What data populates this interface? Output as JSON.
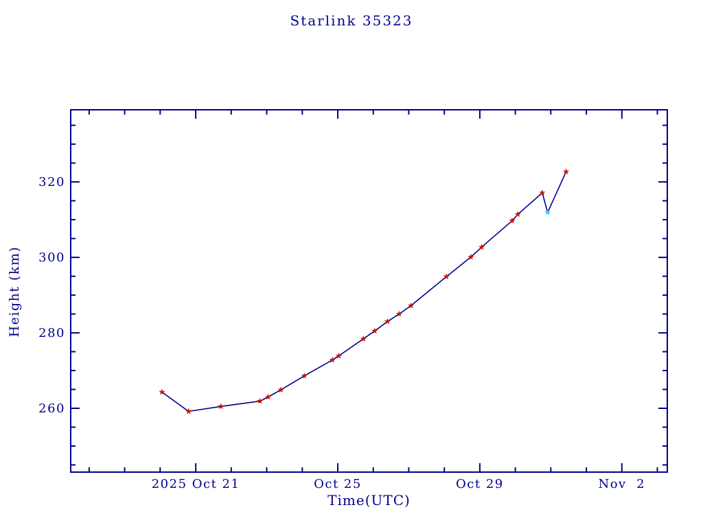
{
  "colors": {
    "axis": "#00008B",
    "text": "#00008B",
    "line": "#00008B",
    "marker": "#CC1100",
    "highlight_marker": "#3FD2F2",
    "background": "#FFFFFF"
  },
  "chart_data": {
    "type": "line",
    "title": "Starlink 35323",
    "xlabel": "Time(UTC)",
    "ylabel": "Height (km)",
    "x_axis": {
      "unit": "days relative to 2025 Oct 21 00:00 UTC",
      "range": [
        -3.52,
        13.28
      ],
      "major_ticks": [
        {
          "t": 0,
          "label": "2025 Oct 21"
        },
        {
          "t": 4,
          "label": "Oct 25"
        },
        {
          "t": 8,
          "label": "Oct 29"
        },
        {
          "t": 12,
          "label": "Nov  2"
        }
      ],
      "minor_tick_interval_days": 1
    },
    "y_axis": {
      "range": [
        243.1,
        339.1
      ],
      "major_ticks": [
        {
          "v": 260,
          "label": "260"
        },
        {
          "v": 280,
          "label": "280"
        },
        {
          "v": 300,
          "label": "300"
        },
        {
          "v": 320,
          "label": "320"
        }
      ],
      "minor_tick_interval_km": 5
    },
    "grid": false,
    "legend": null,
    "series": [
      {
        "name": "height",
        "marker_shape": "star",
        "points": [
          {
            "t": -0.95,
            "height_km": 264.3,
            "highlight": false
          },
          {
            "t": -0.2,
            "height_km": 259.2,
            "highlight": false
          },
          {
            "t": 0.71,
            "height_km": 260.5,
            "highlight": false
          },
          {
            "t": 1.81,
            "height_km": 261.9,
            "highlight": false
          },
          {
            "t": 2.04,
            "height_km": 263.0,
            "highlight": false
          },
          {
            "t": 2.4,
            "height_km": 264.9,
            "highlight": false
          },
          {
            "t": 3.06,
            "height_km": 268.6,
            "highlight": false
          },
          {
            "t": 3.85,
            "height_km": 272.8,
            "highlight": false
          },
          {
            "t": 4.03,
            "height_km": 273.9,
            "highlight": false
          },
          {
            "t": 4.72,
            "height_km": 278.4,
            "highlight": false
          },
          {
            "t": 5.04,
            "height_km": 280.5,
            "highlight": false
          },
          {
            "t": 5.4,
            "height_km": 283.0,
            "highlight": false
          },
          {
            "t": 5.73,
            "height_km": 285.0,
            "highlight": false
          },
          {
            "t": 6.06,
            "height_km": 287.2,
            "highlight": false
          },
          {
            "t": 7.06,
            "height_km": 294.9,
            "highlight": false
          },
          {
            "t": 7.75,
            "height_km": 300.1,
            "highlight": false
          },
          {
            "t": 8.05,
            "height_km": 302.7,
            "highlight": false
          },
          {
            "t": 8.91,
            "height_km": 309.7,
            "highlight": false
          },
          {
            "t": 9.07,
            "height_km": 311.4,
            "highlight": false
          },
          {
            "t": 9.76,
            "height_km": 317.1,
            "highlight": false
          },
          {
            "t": 9.91,
            "height_km": 311.9,
            "highlight": true
          },
          {
            "t": 10.43,
            "height_km": 322.7,
            "highlight": false
          }
        ]
      }
    ]
  }
}
